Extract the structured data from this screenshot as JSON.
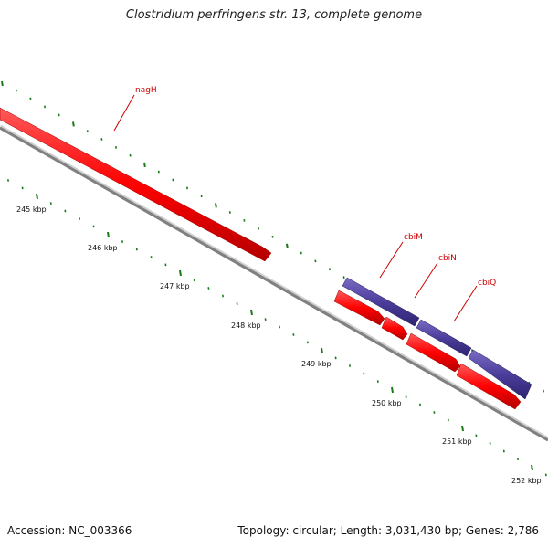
{
  "title": "Clostridium perfringens str. 13, complete genome",
  "footer": {
    "accession": "Accession: NC_003366",
    "summary": "Topology: circular; Length: 3,031,430 bp; Genes: 2,786"
  },
  "colors": {
    "forward_gene": "#ff0000",
    "reverse_gene": "#4b3d9b",
    "backbone": "#8a8a8a",
    "ticks": "#1a7a1a",
    "gene_label": "#cc0000"
  },
  "scale_labels": [
    "245 kbp",
    "246 kbp",
    "247 kbp",
    "248 kbp",
    "249 kbp",
    "250 kbp",
    "251 kbp",
    "252 kbp"
  ],
  "gene_labels": [
    "nagH",
    "cbiM",
    "cbiN",
    "cbiQ"
  ]
}
